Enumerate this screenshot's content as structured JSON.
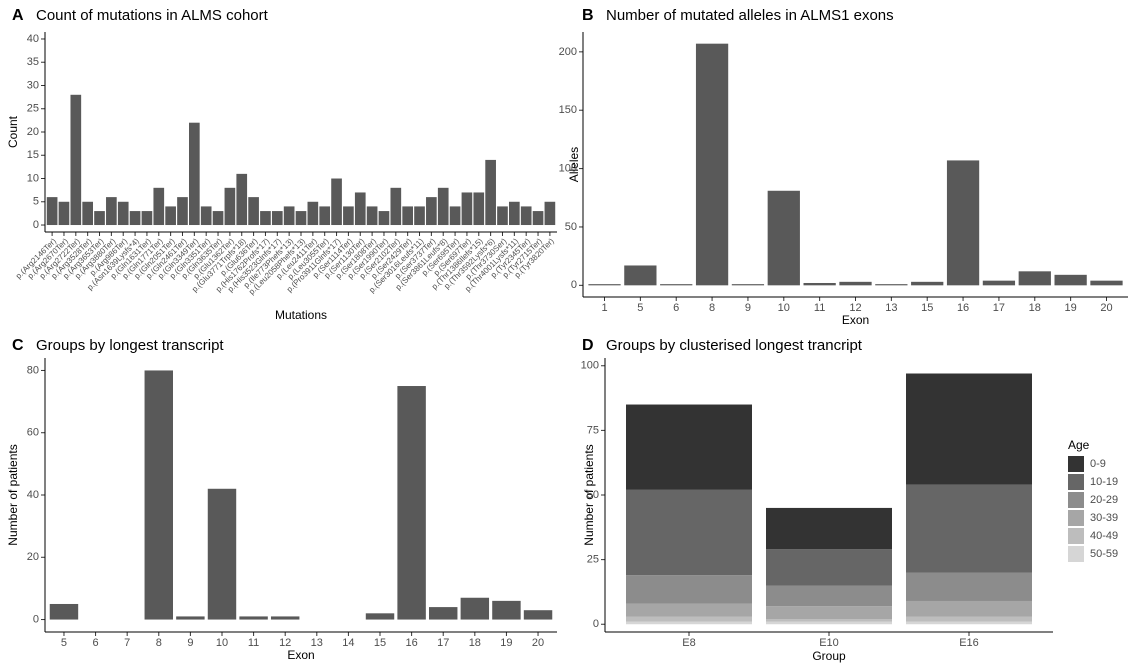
{
  "chart_data": [
    {
      "type": "bar",
      "tag": "A",
      "title": "Count of mutations in ALMS cohort",
      "x_label": "Mutations",
      "y_label": "Count",
      "color": "#595959",
      "categories": [
        "p.(Arg2146Ter)",
        "p.(Arg2670Ter)",
        "p.(Arg2722Ter)",
        "p.(Arg3528Ter)",
        "p.(Arg3653Ter)",
        "p.(Arg3880Ter)",
        "p.(Arg986Ter)",
        "p.(Asn1639Lysfs*4)",
        "p.(Gln1631Ter)",
        "p.(Gln1771Ter)",
        "p.(Gln2051Ter)",
        "p.(Gln2461Ter)",
        "p.(Gln3349Ter)",
        "p.(Gln3351Ter)",
        "p.(Gln3635Ter)",
        "p.(Glu1362Ter)",
        "p.(Glu3771Trpfs*18)",
        "p.(Glu636Ter)",
        "p.(His1762Profs*17)",
        "p.(His3523Glnfs*17)",
        "p.(Ile773Phefs*13)",
        "p.(Leu2058Phefs*13)",
        "p.(Leu2411Ter)",
        "p.(Leu3055Ter)",
        "p.(Pro3911Glnfs*17)",
        "p.(Ser1114Ter)",
        "p.(Ser1130Ter)",
        "p.(Ser1808Ter)",
        "p.(Ser1990Ter)",
        "p.(Ser2102Ter)",
        "p.(Ser2429Ter)",
        "p.(Ser3016Leufs*11)",
        "p.(Ser3737Ter)",
        "p.(Ser3861Leufs*8)",
        "p.(Ser695Ter)",
        "p.(Ser697Ter)",
        "p.(Thr1386Ilefs*15)",
        "p.(Thr3592Lysfs*6)",
        "p.(Thr3730Ser)",
        "p.(Thr4001Lysfs*11)",
        "p.(Tyr2345Ter)",
        "p.(Tyr2715Ter)",
        "p.(Tyr3820Ter)"
      ],
      "values": [
        6,
        5,
        28,
        5,
        3,
        6,
        5,
        3,
        3,
        8,
        4,
        6,
        22,
        4,
        3,
        8,
        11,
        6,
        3,
        3,
        4,
        3,
        5,
        4,
        10,
        4,
        7,
        4,
        3,
        8,
        4,
        4,
        6,
        8,
        4,
        7,
        7,
        14,
        4,
        5,
        4,
        3,
        5
      ],
      "ylim": [
        -1.5,
        41.5
      ],
      "yticks": [
        0,
        5,
        10,
        15,
        20,
        25,
        30,
        35,
        40
      ]
    },
    {
      "type": "bar",
      "tag": "B",
      "title": "Number of mutated alleles in ALMS1 exons",
      "x_label": "Exon",
      "y_label": "Alleles",
      "color": "#595959",
      "categories": [
        "1",
        "5",
        "6",
        "8",
        "9",
        "10",
        "11",
        "12",
        "13",
        "15",
        "16",
        "17",
        "18",
        "19",
        "20"
      ],
      "values": [
        1,
        17,
        1,
        207,
        1,
        81,
        2,
        3,
        1,
        3,
        107,
        4,
        12,
        9,
        4
      ],
      "ylim": [
        -10,
        217
      ],
      "yticks": [
        0,
        50,
        100,
        150,
        200
      ]
    },
    {
      "type": "bar",
      "tag": "C",
      "title": "Groups by longest transcript",
      "x_label": "Exon",
      "y_label": "Number of patients",
      "color": "#595959",
      "categories": [
        "5",
        "6",
        "7",
        "8",
        "9",
        "10",
        "11",
        "12",
        "13",
        "14",
        "15",
        "16",
        "17",
        "18",
        "19",
        "20"
      ],
      "values": [
        5,
        0,
        0,
        80,
        1,
        42,
        1,
        1,
        0,
        0,
        2,
        75,
        4,
        7,
        6,
        3
      ],
      "ylim": [
        -4,
        84
      ],
      "yticks": [
        0,
        20,
        40,
        60,
        80
      ]
    },
    {
      "type": "stacked_bar",
      "tag": "D",
      "title": "Groups by clusterised longest trancript",
      "x_label": "Group",
      "y_label": "Number of patients",
      "legend_title": "Age",
      "categories": [
        "E8",
        "E10",
        "E16"
      ],
      "series": [
        {
          "name": "0-9",
          "color": "#333333",
          "values": [
            33,
            16,
            43
          ]
        },
        {
          "name": "10-19",
          "color": "#666666",
          "values": [
            33,
            14,
            34
          ]
        },
        {
          "name": "20-29",
          "color": "#8c8c8c",
          "values": [
            11,
            8,
            11
          ]
        },
        {
          "name": "30-39",
          "color": "#a6a6a6",
          "values": [
            5,
            5,
            6
          ]
        },
        {
          "name": "40-49",
          "color": "#bdbdbd",
          "values": [
            2,
            1,
            2
          ]
        },
        {
          "name": "50-59",
          "color": "#d6d6d6",
          "values": [
            1,
            1,
            1
          ]
        }
      ],
      "ylim": [
        -3,
        103
      ],
      "yticks": [
        0,
        25,
        50,
        75,
        100
      ]
    }
  ]
}
